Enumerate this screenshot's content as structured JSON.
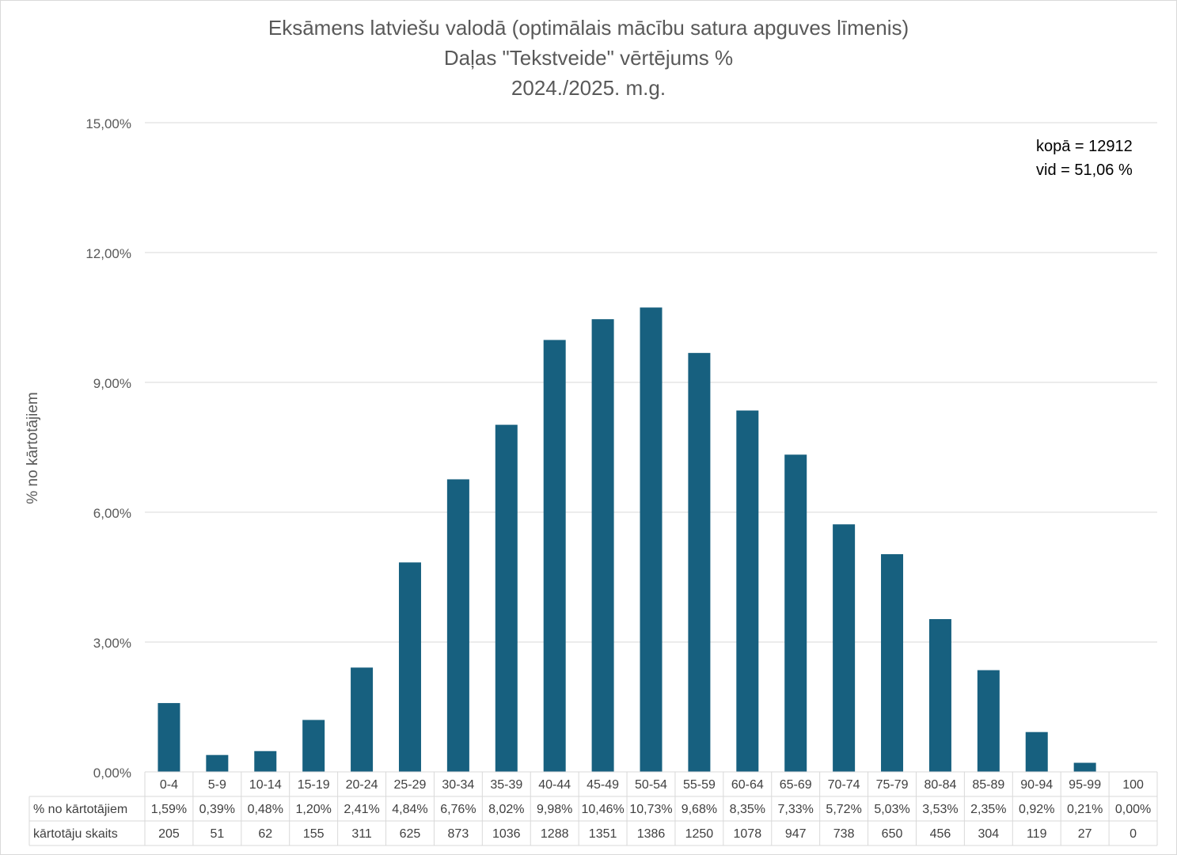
{
  "chart_data": {
    "type": "bar",
    "title": [
      "Eksāmens latviešu valodā (optimālais mācību satura apguves līmenis)",
      "Daļas \"Tekstveide\" vērtējums %",
      "2024./2025. m.g."
    ],
    "ylabel": "% no kārtotājiem",
    "ylim": [
      0,
      15
    ],
    "yticks": [
      "0,00%",
      "3,00%",
      "6,00%",
      "9,00%",
      "12,00%",
      "15,00%"
    ],
    "ytick_values": [
      0,
      3,
      6,
      9,
      12,
      15
    ],
    "grid": true,
    "bar_color": "#17607f",
    "categories": [
      "0-4",
      "5-9",
      "10-14",
      "15-19",
      "20-24",
      "25-29",
      "30-34",
      "35-39",
      "40-44",
      "45-49",
      "50-54",
      "55-59",
      "60-64",
      "65-69",
      "70-74",
      "75-79",
      "80-84",
      "85-89",
      "90-94",
      "95-99",
      "100"
    ],
    "values": [
      1.59,
      0.39,
      0.48,
      1.2,
      2.41,
      4.84,
      6.76,
      8.02,
      9.98,
      10.46,
      10.73,
      9.68,
      8.35,
      7.33,
      5.72,
      5.03,
      3.53,
      2.35,
      0.92,
      0.21,
      0.0
    ],
    "table": {
      "rows": [
        {
          "label": "% no kārtotājiem",
          "cells": [
            "1,59%",
            "0,39%",
            "0,48%",
            "1,20%",
            "2,41%",
            "4,84%",
            "6,76%",
            "8,02%",
            "9,98%",
            "10,46%",
            "10,73%",
            "9,68%",
            "8,35%",
            "7,33%",
            "5,72%",
            "5,03%",
            "3,53%",
            "2,35%",
            "0,92%",
            "0,21%",
            "0,00%"
          ]
        },
        {
          "label": "kārtotāju skaits",
          "cells": [
            "205",
            "51",
            "62",
            "155",
            "311",
            "625",
            "873",
            "1036",
            "1288",
            "1351",
            "1386",
            "1250",
            "1078",
            "947",
            "738",
            "650",
            "456",
            "304",
            "119",
            "27",
            "0"
          ]
        }
      ]
    },
    "annotations": [
      "kopā = 12912",
      "vid = 51,06 %"
    ]
  }
}
